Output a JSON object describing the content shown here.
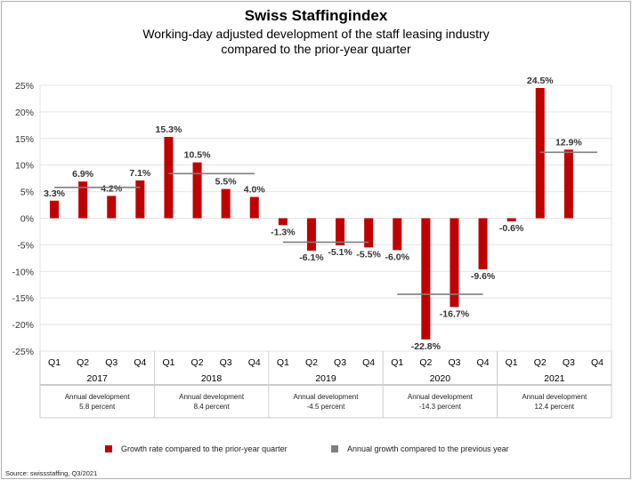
{
  "chart_data": {
    "type": "bar",
    "title": "Swiss Staffingindex",
    "subtitle": [
      "Working-day adjusted development of the staff leasing industry",
      "compared to the prior-year quarter"
    ],
    "ylim": [
      -25,
      25
    ],
    "yticks": [
      25,
      20,
      15,
      10,
      5,
      0,
      -5,
      -10,
      -15,
      -20,
      -25
    ],
    "ytick_labels": [
      "25%",
      "20%",
      "15%",
      "10%",
      "5%",
      "0%",
      "-5%",
      "-10%",
      "-15%",
      "-20%",
      "-25%"
    ],
    "grid": true,
    "years": [
      "2017",
      "2018",
      "2019",
      "2020",
      "2021"
    ],
    "quarters": [
      "Q1",
      "Q2",
      "Q3",
      "Q4"
    ],
    "series": [
      {
        "name": "Growth rate compared to the prior-year quarter",
        "color": "#c00000",
        "values": [
          3.3,
          6.9,
          4.2,
          7.1,
          15.3,
          10.5,
          5.5,
          4.0,
          -1.3,
          -6.1,
          -5.1,
          -5.5,
          -6.0,
          -22.8,
          -16.7,
          -9.6,
          -0.6,
          24.5,
          12.9,
          null
        ],
        "labels": [
          "3.3%",
          "6.9%",
          "4.2%",
          "7.1%",
          "15.3%",
          "10.5%",
          "5.5%",
          "4.0%",
          "-1.3%",
          "-6.1%",
          "-5.1%",
          "-5.5%",
          "-6.0%",
          "-22.8%",
          "-16.7%",
          "-9.6%",
          "-0.6%",
          "24.5%",
          "12.9%",
          ""
        ]
      },
      {
        "name": "Annual growth compared to the previous year",
        "color": "#7f7f7f",
        "values": [
          5.8,
          8.4,
          -4.5,
          -14.3,
          12.4
        ]
      }
    ],
    "annual_boxes": [
      [
        "Annual development",
        "5.8 percent"
      ],
      [
        "Annual development",
        "8.4 percent"
      ],
      [
        "Annual development",
        "-4.5 percent"
      ],
      [
        "Annual development",
        "-14.3 percent"
      ],
      [
        "Annual development",
        "12.4 percent"
      ]
    ],
    "legend_placement": "bottom"
  },
  "source": "Source: swissstaffing, Q3/2021"
}
